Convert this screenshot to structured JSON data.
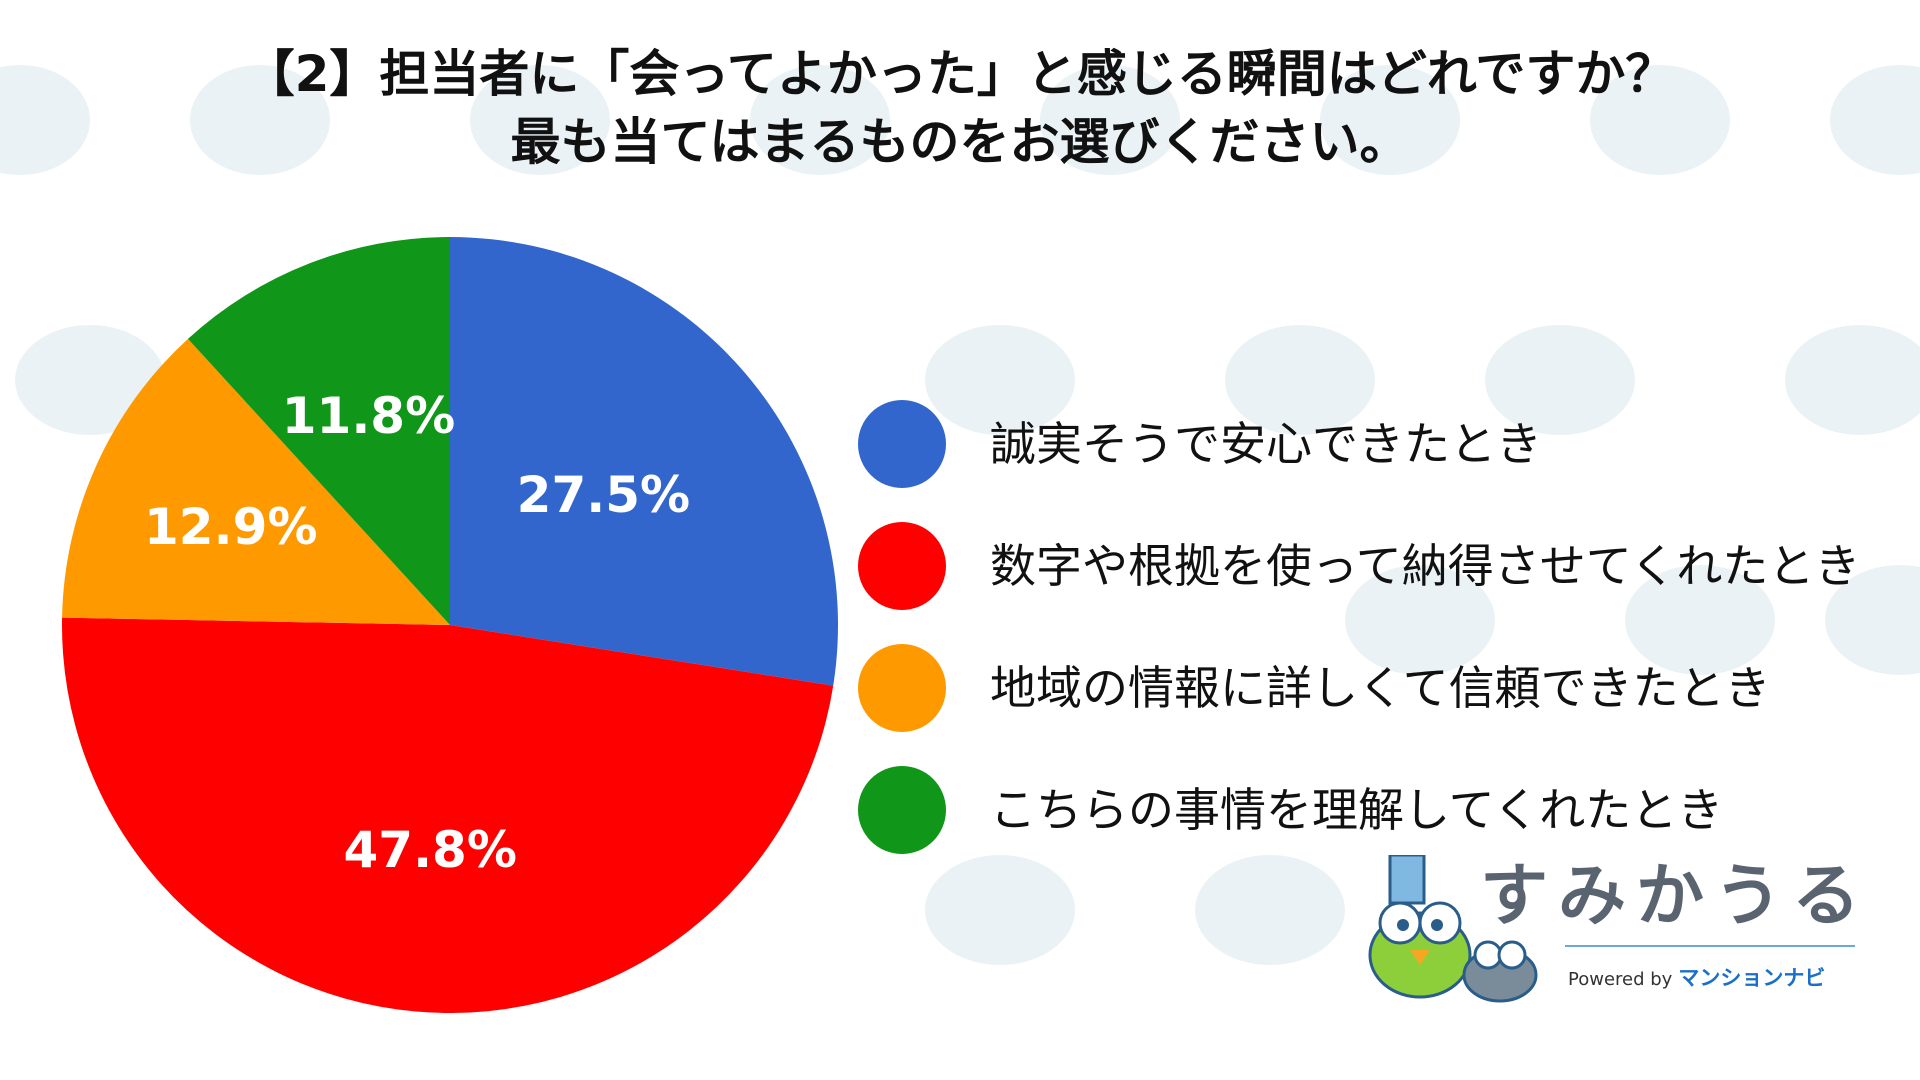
{
  "title_lines": [
    "【2】担当者に「会ってよかった」と感じる瞬間はどれですか？",
    "最も当てはまるものをお選びください。"
  ],
  "chart_data": {
    "type": "pie",
    "title": "【2】担当者に「会ってよかった」と感じる瞬間はどれですか？ 最も当てはまるものをお選びください。",
    "slices": [
      {
        "label": "誠実そうで安心できたとき",
        "value": 27.5,
        "value_label": "27.5%",
        "color": "#3366cc"
      },
      {
        "label": "数字や根拠を使って納得させてくれたとき",
        "value": 47.8,
        "value_label": "47.8%",
        "color": "#ff0000"
      },
      {
        "label": "地域の情報に詳しくて信頼できたとき",
        "value": 12.9,
        "value_label": "12.9%",
        "color": "#ff9900"
      },
      {
        "label": "こちらの事情を理解してくれたとき",
        "value": 11.8,
        "value_label": "11.8%",
        "color": "#109618"
      }
    ],
    "start": "12 o'clock",
    "direction": "clockwise",
    "legend_position": "right"
  },
  "brand": {
    "name": "すみかうる",
    "powered_by": "Powered by",
    "partner": "マンションナビ"
  }
}
